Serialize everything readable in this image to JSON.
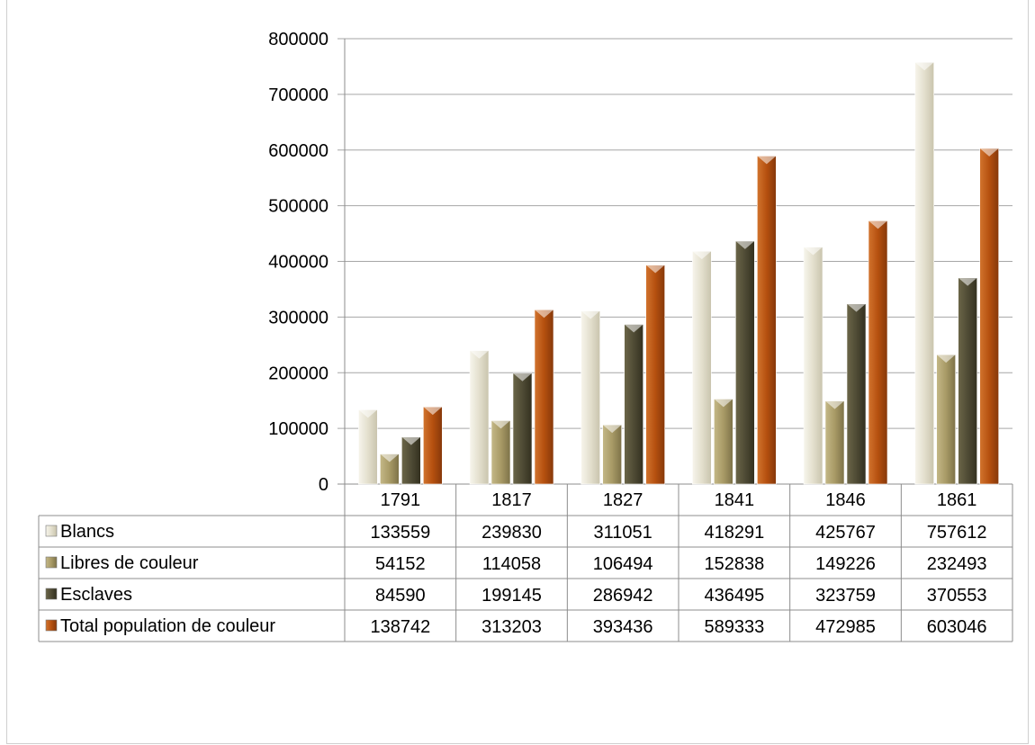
{
  "chart_data": {
    "type": "bar",
    "categories": [
      "1791",
      "1817",
      "1827",
      "1841",
      "1846",
      "1861"
    ],
    "series": [
      {
        "name": "Blancs",
        "values": [
          133559,
          239830,
          311051,
          418291,
          425767,
          757612
        ],
        "color": "#e6e2d2"
      },
      {
        "name": "Libres de couleur",
        "values": [
          54152,
          114058,
          106494,
          152838,
          149226,
          232493
        ],
        "color": "#a89a66"
      },
      {
        "name": "Esclaves",
        "values": [
          84590,
          199145,
          286942,
          436495,
          323759,
          370553
        ],
        "color": "#4f4b35"
      },
      {
        "name": "Total population de couleur",
        "values": [
          138742,
          313203,
          393436,
          589333,
          472985,
          603046
        ],
        "color": "#b5500f"
      }
    ],
    "yticks": [
      "0",
      "100000",
      "200000",
      "300000",
      "400000",
      "500000",
      "600000",
      "700000",
      "800000"
    ],
    "ylim": [
      0,
      800000
    ],
    "grid": true,
    "legend": "data-table"
  }
}
